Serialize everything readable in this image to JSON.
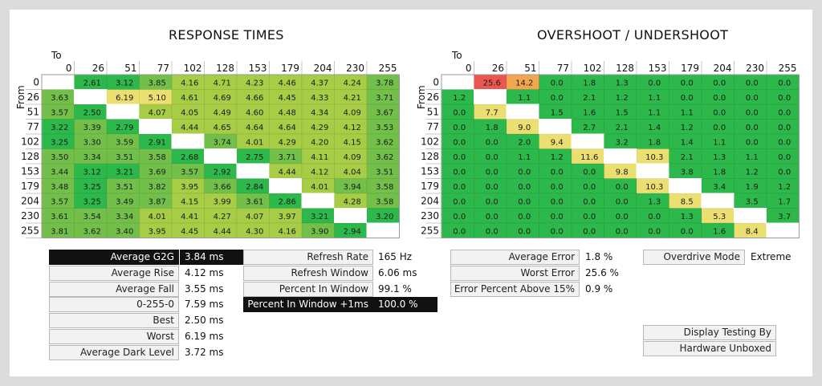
{
  "chart_data": [
    {
      "type": "heatmap",
      "title": "RESPONSE TIMES",
      "xlabel": "To",
      "ylabel": "From",
      "x": [
        "0",
        "26",
        "51",
        "77",
        "102",
        "128",
        "153",
        "179",
        "204",
        "230",
        "255"
      ],
      "y": [
        "0",
        "26",
        "51",
        "77",
        "102",
        "128",
        "153",
        "179",
        "204",
        "230",
        "255"
      ],
      "values": [
        [
          "",
          "2.61",
          "3.12",
          "3.85",
          "4.16",
          "4.71",
          "4.23",
          "4.46",
          "4.37",
          "4.24",
          "3.78"
        ],
        [
          "3.63",
          "",
          "6.19",
          "5.10",
          "4.61",
          "4.69",
          "4.66",
          "4.45",
          "4.33",
          "4.21",
          "3.71"
        ],
        [
          "3.57",
          "2.50",
          "",
          "4.07",
          "4.05",
          "4.49",
          "4.60",
          "4.48",
          "4.34",
          "4.09",
          "3.67"
        ],
        [
          "3.22",
          "3.39",
          "2.79",
          "",
          "4.44",
          "4.65",
          "4.64",
          "4.64",
          "4.29",
          "4.12",
          "3.53"
        ],
        [
          "3.25",
          "3.30",
          "3.59",
          "2.91",
          "",
          "3.74",
          "4.01",
          "4.29",
          "4.20",
          "4.15",
          "3.62"
        ],
        [
          "3.50",
          "3.34",
          "3.51",
          "3.58",
          "2.68",
          "",
          "2.75",
          "3.71",
          "4.11",
          "4.09",
          "3.62"
        ],
        [
          "3.44",
          "3.12",
          "3.21",
          "3.69",
          "3.57",
          "2.92",
          "",
          "4.44",
          "4.12",
          "4.04",
          "3.51"
        ],
        [
          "3.48",
          "3.25",
          "3.51",
          "3.82",
          "3.95",
          "3.66",
          "2.84",
          "",
          "4.01",
          "3.94",
          "3.58"
        ],
        [
          "3.57",
          "3.25",
          "3.49",
          "3.87",
          "4.15",
          "3.99",
          "3.61",
          "2.86",
          "",
          "4.28",
          "3.58"
        ],
        [
          "3.61",
          "3.54",
          "3.34",
          "4.01",
          "4.41",
          "4.27",
          "4.07",
          "3.97",
          "3.21",
          "",
          "3.20"
        ],
        [
          "3.81",
          "3.62",
          "3.40",
          "3.95",
          "4.45",
          "4.44",
          "4.30",
          "4.16",
          "3.90",
          "2.94",
          ""
        ]
      ]
    },
    {
      "type": "heatmap",
      "title": "OVERSHOOT / UNDERSHOOT",
      "xlabel": "To",
      "ylabel": "From",
      "x": [
        "0",
        "26",
        "51",
        "77",
        "102",
        "128",
        "153",
        "179",
        "204",
        "230",
        "255"
      ],
      "y": [
        "0",
        "26",
        "51",
        "77",
        "102",
        "128",
        "153",
        "179",
        "204",
        "230",
        "255"
      ],
      "values": [
        [
          "",
          "25.6",
          "14.2",
          "0.0",
          "1.8",
          "1.3",
          "0.0",
          "0.0",
          "0.0",
          "0.0",
          "0.0"
        ],
        [
          "1.2",
          "",
          "1.1",
          "0.0",
          "2.1",
          "1.2",
          "1.1",
          "0.0",
          "0.0",
          "0.0",
          "0.0"
        ],
        [
          "0.0",
          "7.7",
          "",
          "1.5",
          "1.6",
          "1.5",
          "1.1",
          "1.1",
          "0.0",
          "0.0",
          "0.0"
        ],
        [
          "0.0",
          "1.8",
          "9.0",
          "",
          "2.7",
          "2.1",
          "1.4",
          "1.2",
          "0.0",
          "0.0",
          "0.0"
        ],
        [
          "0.0",
          "0.0",
          "2.0",
          "9.4",
          "",
          "3.2",
          "1.8",
          "1.4",
          "1.1",
          "0.0",
          "0.0"
        ],
        [
          "0.0",
          "0.0",
          "1.1",
          "1.2",
          "11.6",
          "",
          "10.3",
          "2.1",
          "1.3",
          "1.1",
          "0.0"
        ],
        [
          "0.0",
          "0.0",
          "0.0",
          "0.0",
          "0.0",
          "9.8",
          "",
          "3.8",
          "1.8",
          "1.2",
          "0.0"
        ],
        [
          "0.0",
          "0.0",
          "0.0",
          "0.0",
          "0.0",
          "0.0",
          "10.3",
          "",
          "3.4",
          "1.9",
          "1.2"
        ],
        [
          "0.0",
          "0.0",
          "0.0",
          "0.0",
          "0.0",
          "0.0",
          "1.3",
          "8.5",
          "",
          "3.5",
          "1.7"
        ],
        [
          "0.0",
          "0.0",
          "0.0",
          "0.0",
          "0.0",
          "0.0",
          "0.0",
          "1.3",
          "5.3",
          "",
          "3.7"
        ],
        [
          "0.0",
          "0.0",
          "0.0",
          "0.0",
          "0.0",
          "0.0",
          "0.0",
          "0.0",
          "1.6",
          "8.4",
          ""
        ]
      ]
    }
  ],
  "stats": {
    "g2g": [
      {
        "label": "Average G2G",
        "value": "3.84 ms",
        "highlight": true
      },
      {
        "label": "Average Rise",
        "value": "4.12 ms",
        "highlight": false
      },
      {
        "label": "Average Fall",
        "value": "3.55 ms",
        "highlight": false
      },
      {
        "label": "0-255-0",
        "value": "7.59 ms",
        "highlight": false
      },
      {
        "label": "Best",
        "value": "2.50 ms",
        "highlight": false
      },
      {
        "label": "Worst",
        "value": "6.19 ms",
        "highlight": false
      },
      {
        "label": "Average Dark Level",
        "value": "3.72 ms",
        "highlight": false
      }
    ],
    "refresh": [
      {
        "label": "Refresh Rate",
        "value": "165 Hz",
        "highlight": false
      },
      {
        "label": "Refresh Window",
        "value": "6.06 ms",
        "highlight": false
      },
      {
        "label": "Percent In Window",
        "value": "99.1 %",
        "highlight": false
      },
      {
        "label": "Percent In Window +1ms",
        "value": "100.0 %",
        "highlight": true
      }
    ],
    "error": [
      {
        "label": "Average Error",
        "value": "1.8 %"
      },
      {
        "label": "Worst Error",
        "value": "25.6 %"
      },
      {
        "label": "Error Percent Above 15%",
        "value": "0.9 %"
      }
    ],
    "overdrive": {
      "label": "Overdrive Mode",
      "value": "Extreme"
    },
    "credit": {
      "line1": "Display Testing By",
      "line2": "Hardware Unboxed"
    }
  },
  "colors": {
    "fast_green": "#2db84b",
    "mid_green": "#72c04a",
    "yellow_green": "#a7cc45",
    "yellow": "#ecdf72",
    "orange": "#f4a64e",
    "red": "#ec5650",
    "highlight_bg": "#111111"
  }
}
